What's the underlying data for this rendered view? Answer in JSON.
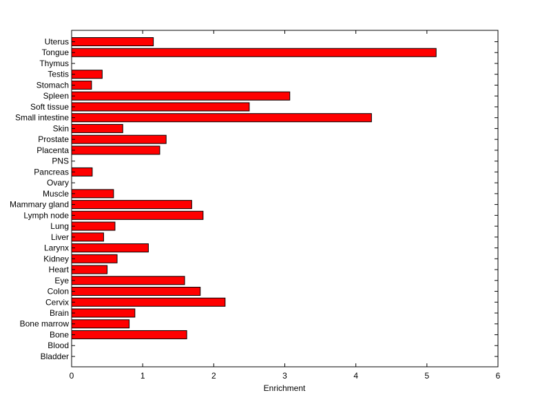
{
  "chart_data": {
    "type": "bar",
    "orientation": "horizontal",
    "title": "",
    "xlabel": "Enrichment",
    "ylabel": "",
    "xlim": [
      0,
      6
    ],
    "xticks": [
      0,
      1,
      2,
      3,
      4,
      5,
      6
    ],
    "grid": false,
    "bar_color": "#ff0000",
    "edge_color": "#000000",
    "categories": [
      "Uterus",
      "Tongue",
      "Thymus",
      "Testis",
      "Stomach",
      "Spleen",
      "Soft tissue",
      "Small intestine",
      "Skin",
      "Prostate",
      "Placenta",
      "PNS",
      "Pancreas",
      "Ovary",
      "Muscle",
      "Mammary gland",
      "Lymph node",
      "Lung",
      "Liver",
      "Larynx",
      "Kidney",
      "Heart",
      "Eye",
      "Colon",
      "Cervix",
      "Brain",
      "Bone marrow",
      "Bone",
      "Blood",
      "Bladder"
    ],
    "values": [
      1.15,
      5.13,
      0,
      0.43,
      0.28,
      3.07,
      2.5,
      4.22,
      0.72,
      1.33,
      1.24,
      0,
      0.29,
      0,
      0.59,
      1.69,
      1.85,
      0.61,
      0.45,
      1.08,
      0.64,
      0.5,
      1.59,
      1.81,
      2.16,
      0.89,
      0.81,
      1.62,
      0,
      0
    ]
  }
}
